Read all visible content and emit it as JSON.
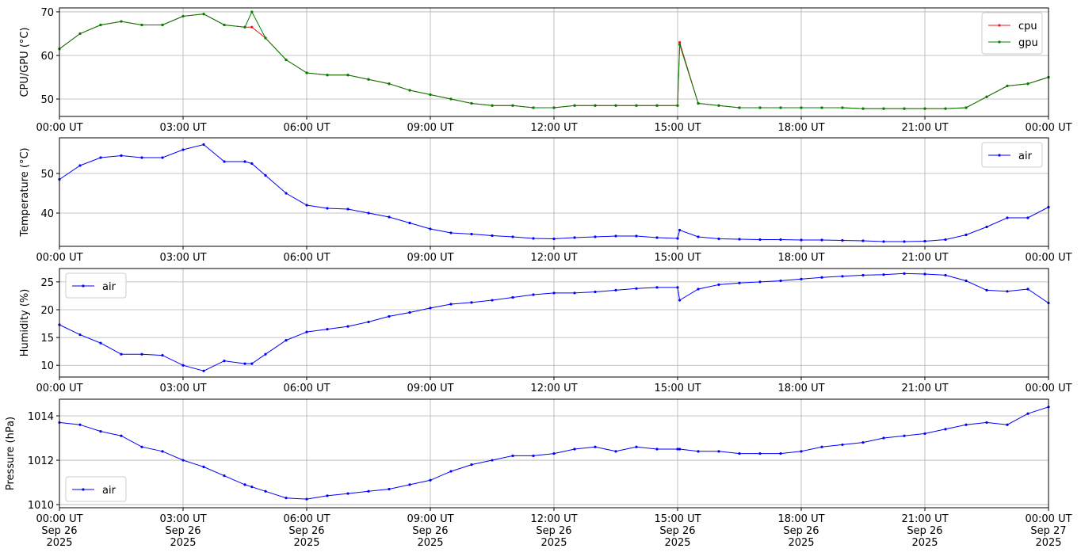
{
  "chart_data": [
    {
      "type": "line",
      "ylabel": "CPU/GPU (°C)",
      "legend": "upper right",
      "grid": true,
      "x": [
        0,
        0.5,
        1,
        1.5,
        2,
        2.5,
        3,
        3.5,
        4,
        4.5,
        4.67,
        5,
        5.5,
        6,
        6.5,
        7,
        7.5,
        8,
        8.5,
        9,
        9.5,
        10,
        10.5,
        11,
        11.5,
        12,
        12.5,
        13,
        13.5,
        14,
        14.5,
        15,
        15.05,
        15.5,
        16,
        16.5,
        17,
        17.5,
        18,
        18.5,
        19,
        19.5,
        20,
        20.5,
        21,
        21.5,
        22,
        22.5,
        23,
        23.5,
        24
      ],
      "xlim": [
        0,
        24
      ],
      "xticks": [
        {
          "value": 0,
          "label": "00:00 UT"
        },
        {
          "value": 3,
          "label": "03:00 UT"
        },
        {
          "value": 6,
          "label": "06:00 UT"
        },
        {
          "value": 9,
          "label": "09:00 UT"
        },
        {
          "value": 12,
          "label": "12:00 UT"
        },
        {
          "value": 15,
          "label": "15:00 UT"
        },
        {
          "value": 18,
          "label": "18:00 UT"
        },
        {
          "value": 21,
          "label": "21:00 UT"
        },
        {
          "value": 24,
          "label": "00:00 UT"
        }
      ],
      "ylim": [
        46,
        70.9
      ],
      "yticks": [
        50,
        60,
        70
      ],
      "series": [
        {
          "name": "cpu",
          "color": "#e41a1c",
          "values": [
            61.5,
            65,
            67,
            67.8,
            67,
            67,
            69,
            69.5,
            67,
            66.5,
            66.5,
            64,
            59,
            56,
            55.5,
            55.5,
            54.5,
            53.5,
            52,
            51,
            50,
            49,
            48.5,
            48.5,
            48,
            48,
            48.5,
            48.5,
            48.5,
            48.5,
            48.5,
            48.5,
            63,
            49,
            48.5,
            48,
            48,
            48,
            48,
            48,
            48,
            47.8,
            47.8,
            47.8,
            47.8,
            47.8,
            48,
            50.5,
            53,
            53.5,
            55
          ]
        },
        {
          "name": "gpu",
          "color": "#008000",
          "values": [
            61.5,
            65,
            67,
            67.8,
            67,
            67,
            69,
            69.5,
            67,
            66.5,
            70,
            64,
            59,
            56,
            55.5,
            55.5,
            54.5,
            53.5,
            52,
            51,
            50,
            49,
            48.5,
            48.5,
            48,
            48,
            48.5,
            48.5,
            48.5,
            48.5,
            48.5,
            48.5,
            62.5,
            49,
            48.5,
            48,
            48,
            48,
            48,
            48,
            48,
            47.8,
            47.8,
            47.8,
            47.8,
            47.8,
            48,
            50.5,
            53,
            53.5,
            55
          ]
        }
      ]
    },
    {
      "type": "line",
      "ylabel": "Temperature (°C)",
      "legend": "upper right",
      "grid": true,
      "x": [
        0,
        0.5,
        1,
        1.5,
        2,
        2.5,
        3,
        3.5,
        4,
        4.5,
        4.67,
        5,
        5.5,
        6,
        6.5,
        7,
        7.5,
        8,
        8.5,
        9,
        9.5,
        10,
        10.5,
        11,
        11.5,
        12,
        12.5,
        13,
        13.5,
        14,
        14.5,
        15,
        15.05,
        15.5,
        16,
        16.5,
        17,
        17.5,
        18,
        18.5,
        19,
        19.5,
        20,
        20.5,
        21,
        21.5,
        22,
        22.5,
        23,
        23.5,
        24
      ],
      "xlim": [
        0,
        24
      ],
      "xticks": [
        {
          "value": 0,
          "label": "00:00 UT"
        },
        {
          "value": 3,
          "label": "03:00 UT"
        },
        {
          "value": 6,
          "label": "06:00 UT"
        },
        {
          "value": 9,
          "label": "09:00 UT"
        },
        {
          "value": 12,
          "label": "12:00 UT"
        },
        {
          "value": 15,
          "label": "15:00 UT"
        },
        {
          "value": 18,
          "label": "18:00 UT"
        },
        {
          "value": 21,
          "label": "21:00 UT"
        },
        {
          "value": 24,
          "label": "00:00 UT"
        }
      ],
      "ylim": [
        31.6,
        59
      ],
      "yticks": [
        40,
        50
      ],
      "series": [
        {
          "name": "air",
          "color": "#0000ff",
          "values": [
            48.5,
            52,
            54,
            54.5,
            54,
            54,
            56,
            57.3,
            53,
            53,
            52.5,
            49.5,
            45,
            42,
            41.2,
            41,
            40,
            39,
            37.5,
            36,
            35,
            34.7,
            34.3,
            34,
            33.6,
            33.5,
            33.8,
            34,
            34.2,
            34.2,
            33.8,
            33.6,
            35.7,
            34,
            33.5,
            33.4,
            33.3,
            33.3,
            33.2,
            33.2,
            33.1,
            33,
            32.8,
            32.8,
            32.9,
            33.3,
            34.5,
            36.5,
            38.8,
            38.8,
            41.5
          ]
        }
      ]
    },
    {
      "type": "line",
      "ylabel": "Humidity (%)",
      "legend": "upper left",
      "grid": true,
      "x": [
        0,
        0.5,
        1,
        1.5,
        2,
        2.5,
        3,
        3.5,
        4,
        4.5,
        4.67,
        5,
        5.5,
        6,
        6.5,
        7,
        7.5,
        8,
        8.5,
        9,
        9.5,
        10,
        10.5,
        11,
        11.5,
        12,
        12.5,
        13,
        13.5,
        14,
        14.5,
        15,
        15.05,
        15.5,
        16,
        16.5,
        17,
        17.5,
        18,
        18.5,
        19,
        19.5,
        20,
        20.5,
        21,
        21.5,
        22,
        22.5,
        23,
        23.5,
        24
      ],
      "xlim": [
        0,
        24
      ],
      "xticks": [
        {
          "value": 0,
          "label": "00:00 UT"
        },
        {
          "value": 3,
          "label": "03:00 UT"
        },
        {
          "value": 6,
          "label": "06:00 UT"
        },
        {
          "value": 9,
          "label": "09:00 UT"
        },
        {
          "value": 12,
          "label": "12:00 UT"
        },
        {
          "value": 15,
          "label": "15:00 UT"
        },
        {
          "value": 18,
          "label": "18:00 UT"
        },
        {
          "value": 21,
          "label": "21:00 UT"
        },
        {
          "value": 24,
          "label": "00:00 UT"
        }
      ],
      "ylim": [
        7.9,
        27.4
      ],
      "yticks": [
        10,
        15,
        20,
        25
      ],
      "series": [
        {
          "name": "air",
          "color": "#0000ff",
          "values": [
            17.3,
            15.5,
            14,
            12,
            12,
            11.8,
            10,
            9,
            10.8,
            10.3,
            10.3,
            12,
            14.5,
            16,
            16.5,
            17,
            17.8,
            18.8,
            19.5,
            20.3,
            21,
            21.3,
            21.7,
            22.2,
            22.7,
            23,
            23,
            23.2,
            23.5,
            23.8,
            24,
            24,
            21.7,
            23.7,
            24.5,
            24.8,
            25,
            25.2,
            25.5,
            25.8,
            26,
            26.2,
            26.3,
            26.5,
            26.4,
            26.2,
            25.2,
            23.5,
            23.3,
            23.7,
            21.2
          ]
        }
      ]
    },
    {
      "type": "line",
      "ylabel": "Pressure (hPa)",
      "legend": "lower left",
      "grid": true,
      "x": [
        0,
        0.5,
        1,
        1.5,
        2,
        2.5,
        3,
        3.5,
        4,
        4.5,
        4.67,
        5,
        5.5,
        6,
        6.5,
        7,
        7.5,
        8,
        8.5,
        9,
        9.5,
        10,
        10.5,
        11,
        11.5,
        12,
        12.5,
        13,
        13.5,
        14,
        14.5,
        15,
        15.05,
        15.5,
        16,
        16.5,
        17,
        17.5,
        18,
        18.5,
        19,
        19.5,
        20,
        20.5,
        21,
        21.5,
        22,
        22.5,
        23,
        23.5,
        24
      ],
      "xlim": [
        0,
        24
      ],
      "xticks": [
        {
          "value": 0,
          "label": "00:00 UT\nSep 26\n2025"
        },
        {
          "value": 3,
          "label": "03:00 UT\nSep 26\n2025"
        },
        {
          "value": 6,
          "label": "06:00 UT\nSep 26\n2025"
        },
        {
          "value": 9,
          "label": "09:00 UT\nSep 26\n2025"
        },
        {
          "value": 12,
          "label": "12:00 UT\nSep 26\n2025"
        },
        {
          "value": 15,
          "label": "15:00 UT\nSep 26\n2025"
        },
        {
          "value": 18,
          "label": "18:00 UT\nSep 26\n2025"
        },
        {
          "value": 21,
          "label": "21:00 UT\nSep 26\n2025"
        },
        {
          "value": 24,
          "label": "00:00 UT\nSep 27\n2025"
        }
      ],
      "ylim": [
        1009.86,
        1014.75
      ],
      "yticks": [
        1010,
        1012,
        1014
      ],
      "series": [
        {
          "name": "air",
          "color": "#0000ff",
          "values": [
            1013.7,
            1013.6,
            1013.3,
            1013.1,
            1012.6,
            1012.4,
            1012,
            1011.7,
            1011.3,
            1010.9,
            1010.8,
            1010.6,
            1010.3,
            1010.25,
            1010.4,
            1010.5,
            1010.6,
            1010.7,
            1010.9,
            1011.1,
            1011.5,
            1011.8,
            1012,
            1012.2,
            1012.2,
            1012.3,
            1012.5,
            1012.6,
            1012.4,
            1012.6,
            1012.5,
            1012.5,
            1012.5,
            1012.4,
            1012.4,
            1012.3,
            1012.3,
            1012.3,
            1012.4,
            1012.6,
            1012.7,
            1012.8,
            1013,
            1013.1,
            1013.2,
            1013.4,
            1013.6,
            1013.7,
            1013.6,
            1014.1,
            1014.4
          ]
        }
      ]
    }
  ]
}
